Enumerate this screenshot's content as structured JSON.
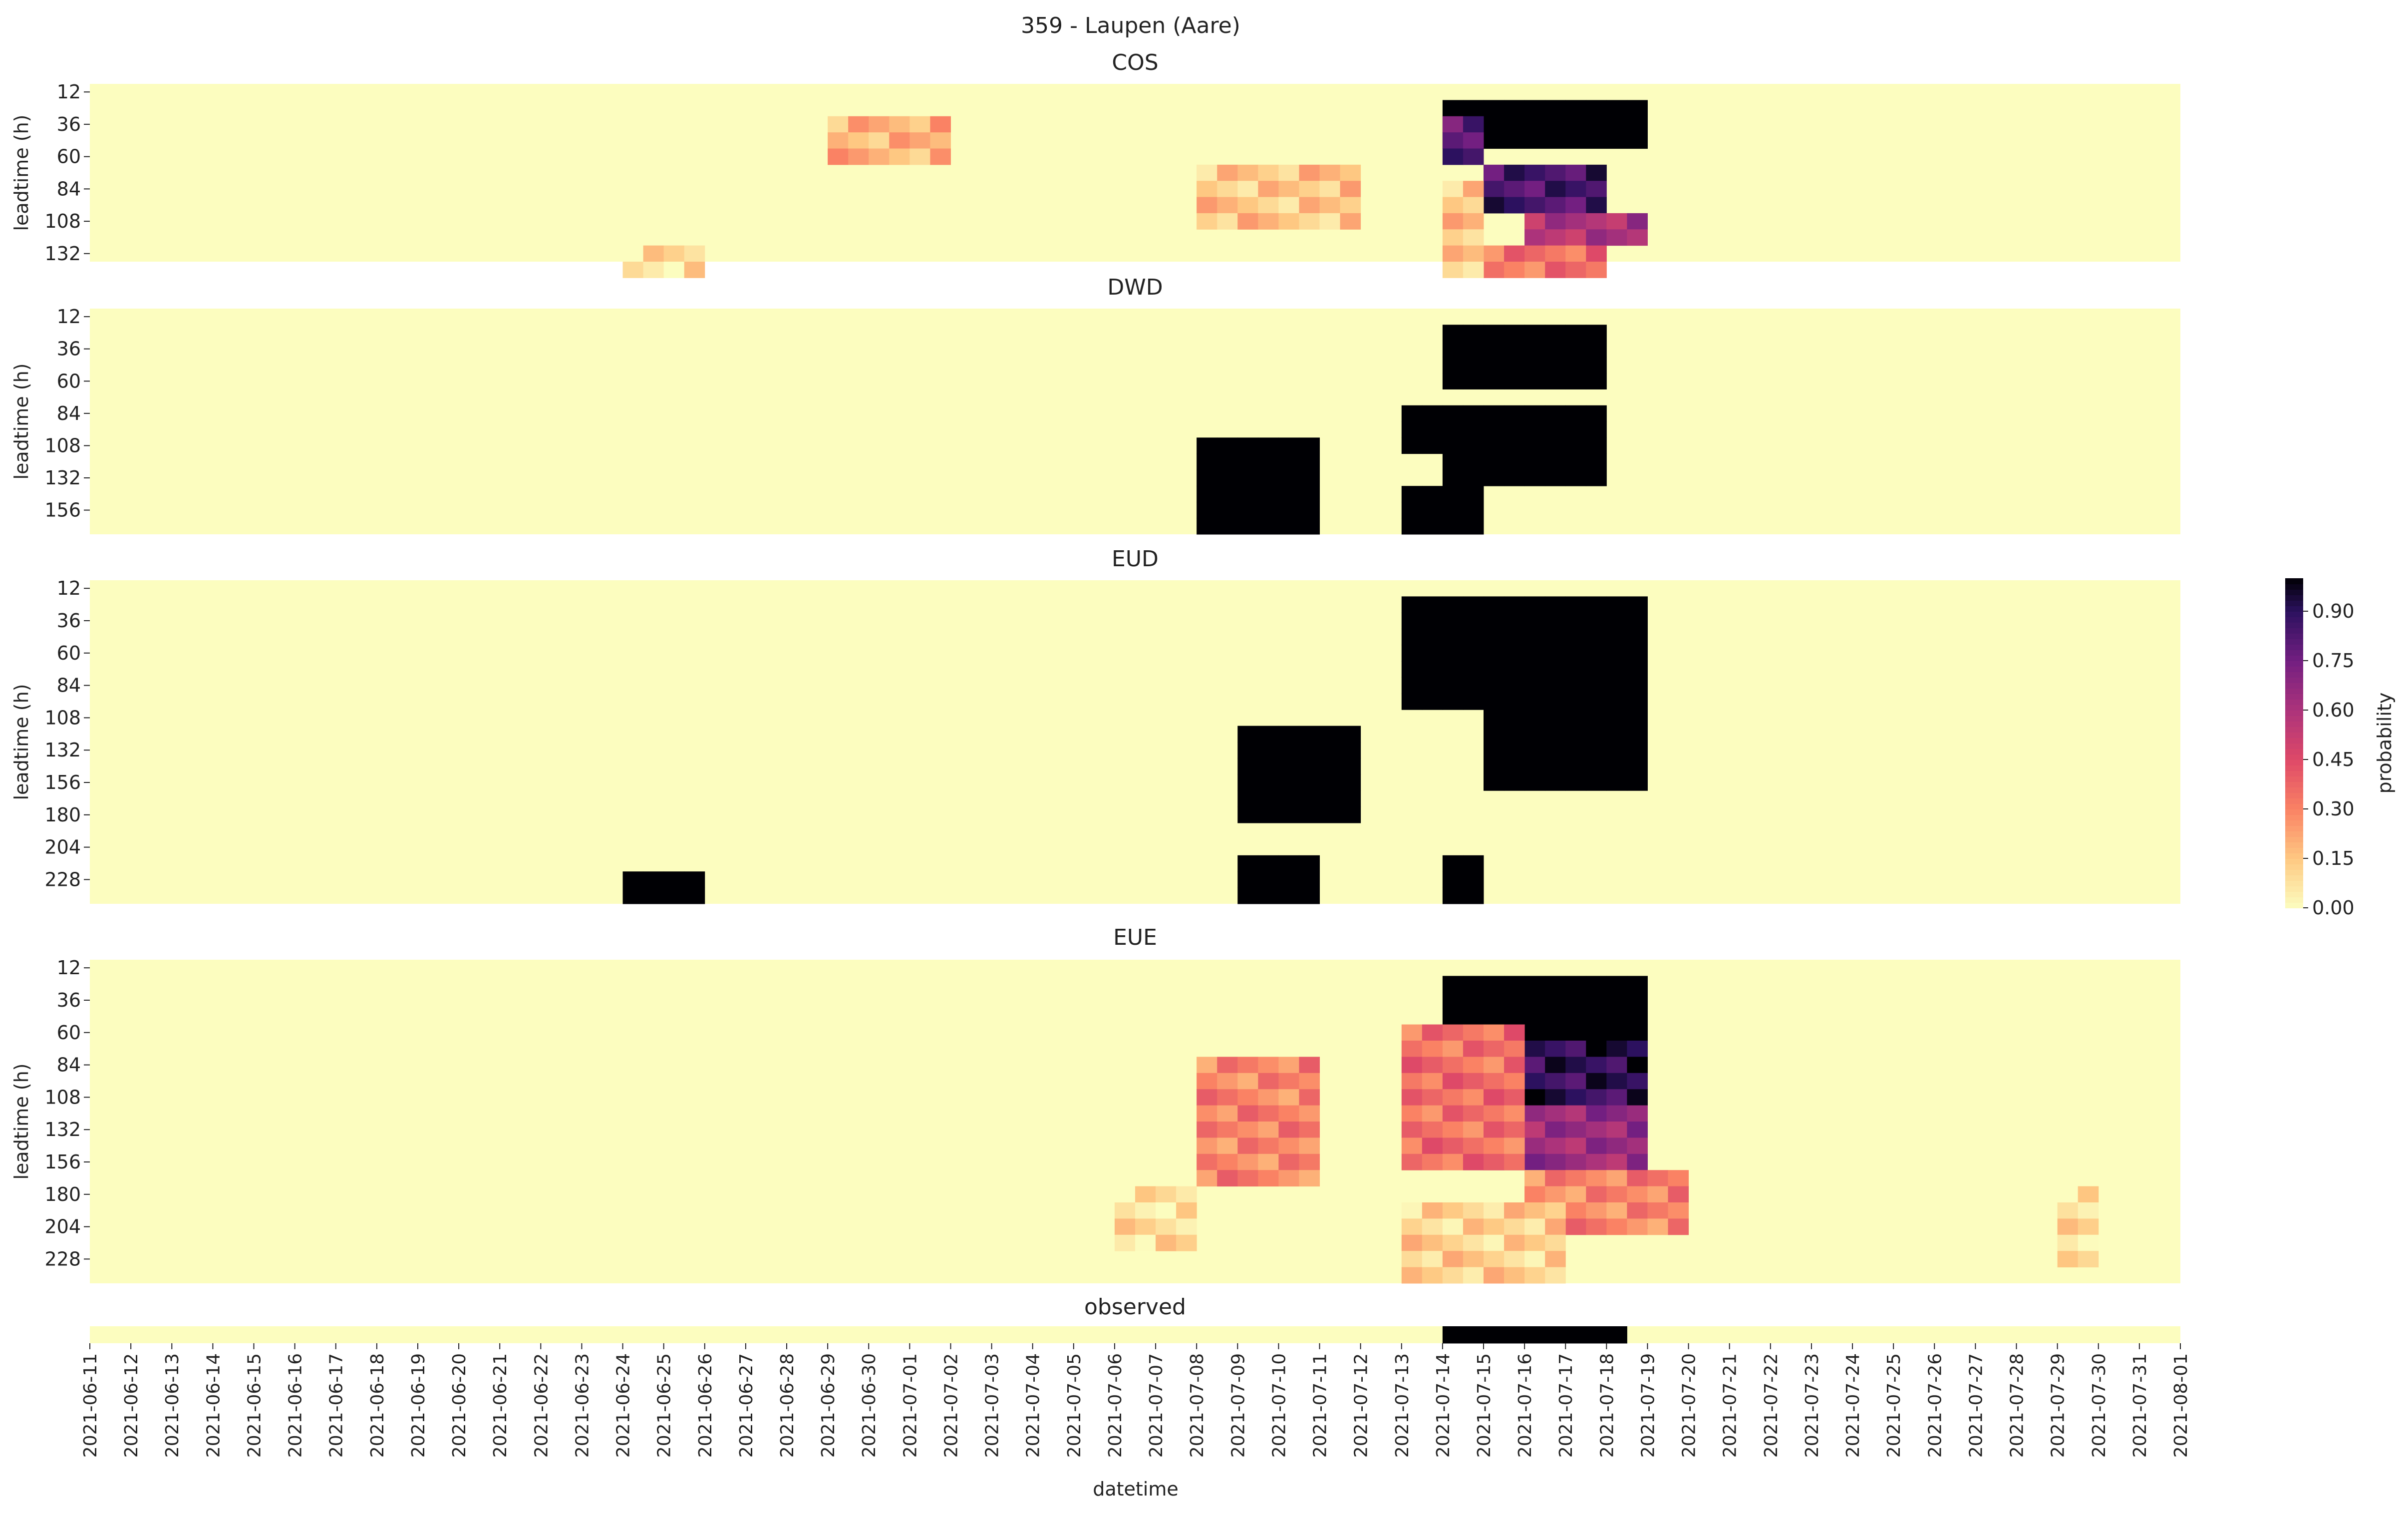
{
  "chart_data": {
    "type": "heatmap",
    "title": "359 - Laupen (Aare)",
    "xlabel": "datetime",
    "ylabel": "leadtime (h)",
    "colorbar": {
      "label": "probability",
      "ticks": [
        "0.00",
        "0.15",
        "0.30",
        "0.45",
        "0.60",
        "0.75",
        "0.90"
      ],
      "range": [
        0,
        1
      ],
      "colormap": "magma_r"
    },
    "x_ticks": [
      "2021-06-11",
      "2021-06-12",
      "2021-06-13",
      "2021-06-14",
      "2021-06-15",
      "2021-06-16",
      "2021-06-17",
      "2021-06-18",
      "2021-06-19",
      "2021-06-20",
      "2021-06-21",
      "2021-06-22",
      "2021-06-23",
      "2021-06-24",
      "2021-06-25",
      "2021-06-26",
      "2021-06-27",
      "2021-06-28",
      "2021-06-29",
      "2021-06-30",
      "2021-07-01",
      "2021-07-02",
      "2021-07-03",
      "2021-07-04",
      "2021-07-05",
      "2021-07-06",
      "2021-07-07",
      "2021-07-08",
      "2021-07-09",
      "2021-07-10",
      "2021-07-11",
      "2021-07-12",
      "2021-07-13",
      "2021-07-14",
      "2021-07-15",
      "2021-07-16",
      "2021-07-17",
      "2021-07-18",
      "2021-07-19",
      "2021-07-20",
      "2021-07-21",
      "2021-07-22",
      "2021-07-23",
      "2021-07-24",
      "2021-07-25",
      "2021-07-26",
      "2021-07-27",
      "2021-07-28",
      "2021-07-29",
      "2021-07-30",
      "2021-07-31",
      "2021-08-01"
    ],
    "panels": [
      {
        "name": "COS",
        "y_ticks": [
          "12",
          "36",
          "60",
          "84",
          "108",
          "132"
        ],
        "leadtime_rows": 11,
        "regions": [
          {
            "x0": "2021-07-14",
            "x1": "2021-07-19",
            "y0": 12,
            "y1": 48,
            "value": 1.0
          },
          {
            "x0": "2021-07-14",
            "x1": "2021-07-15",
            "y0": 24,
            "y1": 60,
            "value": 0.8
          },
          {
            "x0": "2021-07-15",
            "x1": "2021-07-18",
            "y0": 60,
            "y1": 96,
            "value": 0.85
          },
          {
            "x0": "2021-07-16",
            "x1": "2021-07-19",
            "y0": 96,
            "y1": 120,
            "value": 0.6
          },
          {
            "x0": "2021-07-15",
            "x1": "2021-07-18",
            "y0": 120,
            "y1": 144,
            "value": 0.35
          },
          {
            "x0": "2021-07-14",
            "x1": "2021-07-15",
            "y0": 72,
            "y1": 144,
            "value": 0.15
          },
          {
            "x0": "2021-06-29",
            "x1": "2021-07-02",
            "y0": 24,
            "y1": 60,
            "value": 0.2
          },
          {
            "x0": "2021-07-08",
            "x1": "2021-07-12",
            "y0": 60,
            "y1": 108,
            "value": 0.15
          },
          {
            "x0": "2021-06-24",
            "x1": "2021-06-26",
            "y0": 120,
            "y1": 144,
            "value": 0.1
          }
        ]
      },
      {
        "name": "DWD",
        "y_ticks": [
          "12",
          "36",
          "60",
          "84",
          "108",
          "132",
          "156"
        ],
        "leadtime_rows": 14,
        "regions": [
          {
            "x0": "2021-07-14",
            "x1": "2021-07-18",
            "y0": 12,
            "y1": 60,
            "value": 1.0
          },
          {
            "x0": "2021-07-13",
            "x1": "2021-07-18",
            "y0": 72,
            "y1": 108,
            "value": 1.0
          },
          {
            "x0": "2021-07-14",
            "x1": "2021-07-18",
            "y0": 108,
            "y1": 132,
            "value": 1.0
          },
          {
            "x0": "2021-07-08",
            "x1": "2021-07-11",
            "y0": 96,
            "y1": 168,
            "value": 1.0
          },
          {
            "x0": "2021-07-13",
            "x1": "2021-07-15",
            "y0": 132,
            "y1": 168,
            "value": 1.0
          }
        ]
      },
      {
        "name": "EUD",
        "y_ticks": [
          "12",
          "36",
          "60",
          "84",
          "108",
          "132",
          "156",
          "180",
          "204",
          "228"
        ],
        "leadtime_rows": 20,
        "regions": [
          {
            "x0": "2021-07-13",
            "x1": "2021-07-19",
            "y0": 12,
            "y1": 96,
            "value": 1.0
          },
          {
            "x0": "2021-07-15",
            "x1": "2021-07-19",
            "y0": 96,
            "y1": 156,
            "value": 1.0
          },
          {
            "x0": "2021-07-09",
            "x1": "2021-07-12",
            "y0": 108,
            "y1": 180,
            "value": 1.0
          },
          {
            "x0": "2021-07-09",
            "x1": "2021-07-11",
            "y0": 204,
            "y1": 240,
            "value": 1.0
          },
          {
            "x0": "2021-07-14",
            "x1": "2021-07-15",
            "y0": 204,
            "y1": 240,
            "value": 1.0
          },
          {
            "x0": "2021-06-24",
            "x1": "2021-06-26",
            "y0": 216,
            "y1": 240,
            "value": 1.0
          }
        ]
      },
      {
        "name": "EUE",
        "y_ticks": [
          "12",
          "36",
          "60",
          "84",
          "108",
          "132",
          "156",
          "180",
          "204",
          "228"
        ],
        "leadtime_rows": 20,
        "regions": [
          {
            "x0": "2021-07-14",
            "x1": "2021-07-19",
            "y0": 12,
            "y1": 60,
            "value": 1.0
          },
          {
            "x0": "2021-07-15",
            "x1": "2021-07-19",
            "y0": 60,
            "y1": 108,
            "value": 0.9
          },
          {
            "x0": "2021-07-15",
            "x1": "2021-07-19",
            "y0": 108,
            "y1": 156,
            "value": 0.65
          },
          {
            "x0": "2021-07-13",
            "x1": "2021-07-16",
            "y0": 48,
            "y1": 156,
            "value": 0.35
          },
          {
            "x0": "2021-07-16",
            "x1": "2021-07-20",
            "y0": 156,
            "y1": 204,
            "value": 0.3
          },
          {
            "x0": "2021-07-08",
            "x1": "2021-07-11",
            "y0": 72,
            "y1": 168,
            "value": 0.3
          },
          {
            "x0": "2021-07-13",
            "x1": "2021-07-17",
            "y0": 180,
            "y1": 240,
            "value": 0.12
          },
          {
            "x0": "2021-07-06",
            "x1": "2021-07-08",
            "y0": 168,
            "y1": 216,
            "value": 0.08
          },
          {
            "x0": "2021-07-29",
            "x1": "2021-07-30",
            "y0": 168,
            "y1": 228,
            "value": 0.08
          }
        ]
      },
      {
        "name": "observed",
        "y_ticks": [],
        "leadtime_rows": 1,
        "regions": [
          {
            "x0": "2021-07-14",
            "x1": "2021-07-18.5",
            "y0": 0,
            "y1": 1,
            "value": 1.0
          }
        ]
      }
    ]
  }
}
